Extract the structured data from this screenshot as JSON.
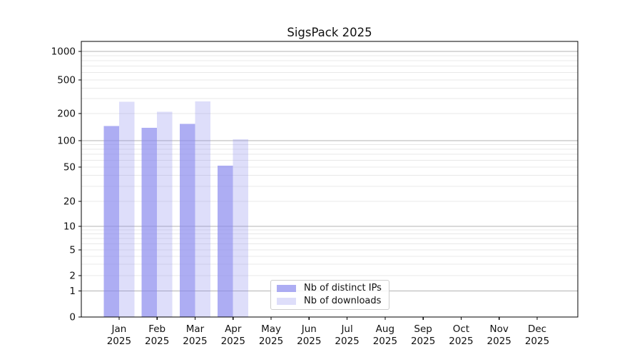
{
  "title": "SigsPack 2025",
  "legend": {
    "items": [
      {
        "label": "Nb of distinct IPs"
      },
      {
        "label": "Nb of downloads"
      }
    ]
  },
  "colors": {
    "bar_base": "#8888ee",
    "distinct_ips_alpha": 0.69,
    "downloads_alpha": 0.28,
    "major_grid": "#b3b3b3",
    "minor_grid": "#e8e8e8",
    "spine": "#000000",
    "text": "#111111"
  },
  "chart_data": {
    "type": "bar",
    "title": "SigsPack 2025",
    "xlabel": "",
    "ylabel": "",
    "yscale": "symlog",
    "ylim": [
      0,
      1500
    ],
    "grid": true,
    "legend_position": "lower center",
    "y_ticks": [
      0,
      1,
      2,
      5,
      10,
      20,
      50,
      100,
      200,
      500,
      1000
    ],
    "categories": [
      "Jan 2025",
      "Feb 2025",
      "Mar 2025",
      "Apr 2025",
      "May 2025",
      "Jun 2025",
      "Jul 2025",
      "Aug 2025",
      "Sep 2025",
      "Oct 2025",
      "Nov 2025",
      "Dec 2025"
    ],
    "series": [
      {
        "name": "Nb of distinct IPs",
        "values": [
          146,
          139,
          153,
          52,
          null,
          null,
          null,
          null,
          null,
          null,
          null,
          null
        ]
      },
      {
        "name": "Nb of downloads",
        "values": [
          275,
          209,
          278,
          104,
          null,
          null,
          null,
          null,
          null,
          null,
          null,
          null
        ]
      }
    ]
  }
}
